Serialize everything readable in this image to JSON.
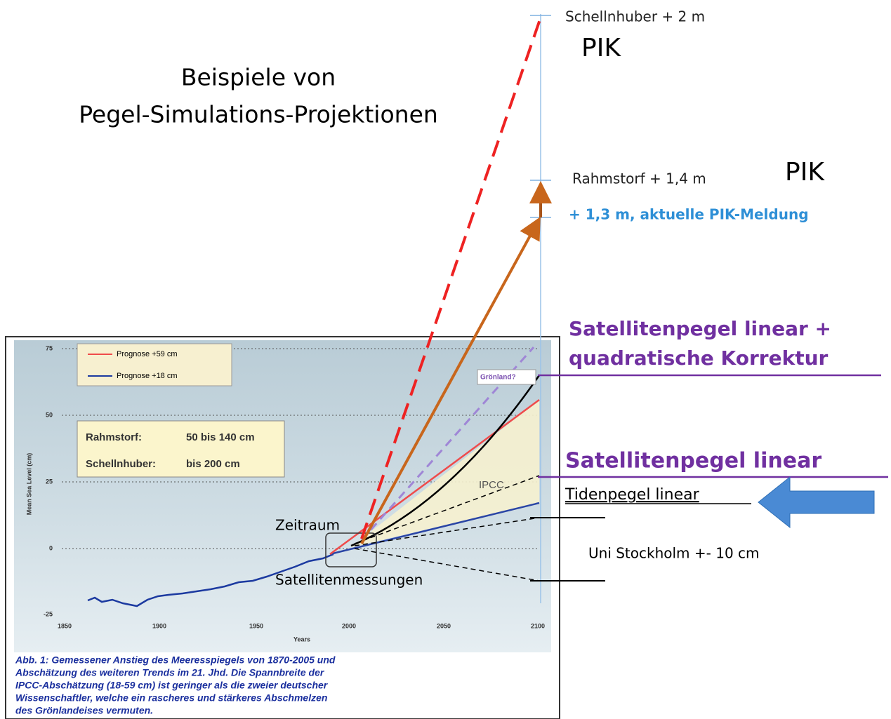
{
  "header": {
    "title_line1": "Beispiele von",
    "title_line2": "Pegel-Simulations-Projektionen"
  },
  "annotations": {
    "schellnhuber": "Schellnhuber + 2 m",
    "pik1": "PIK",
    "rahmstorf": "Rahmstorf + 1,4 m",
    "pik2": "PIK",
    "pik_meldung": "+ 1,3 m, aktuelle PIK-Meldung",
    "sat_quad_line1": "Satellitenpegel linear +",
    "sat_quad_line2": "quadratische Korrektur",
    "sat_linear": "Satellitenpegel linear",
    "tiden": "Tidenpegel linear",
    "stockholm": "Uni Stockholm +- 10 cm",
    "zeitraum": "Zeitraum",
    "satmess": "Satellitenmessungen"
  },
  "inset": {
    "legend": [
      "Prognose +59 cm",
      "Prognose +18 cm"
    ],
    "box": [
      [
        "Rahmstorf:",
        "50 bis 140 cm"
      ],
      [
        "Schellnhuber:",
        "bis 200 cm"
      ]
    ],
    "yticks": [
      "75",
      "50",
      "25",
      "0",
      "-25"
    ],
    "xticks": [
      "1850",
      "1900",
      "1950",
      "2000",
      "2050",
      "2100"
    ],
    "ylabel": "Mean Sea Level (cm)",
    "xlabel": "Years",
    "ipcc": "IPCC",
    "groenland": "Grönland?",
    "caption": [
      "Abb. 1: Gemessener Anstieg des Meeresspiegels von 1870-2005 und",
      "Abschätzung des weiteren Trends im 21. Jhd. Die Spannbreite der",
      "IPCC-Abschätzung (18-59 cm) ist geringer als die zweier deutscher",
      "Wissenschaftler, welche ein rascheres und stärkeres Abschmelzen",
      "des Grönlandeises vermuten."
    ]
  }
}
